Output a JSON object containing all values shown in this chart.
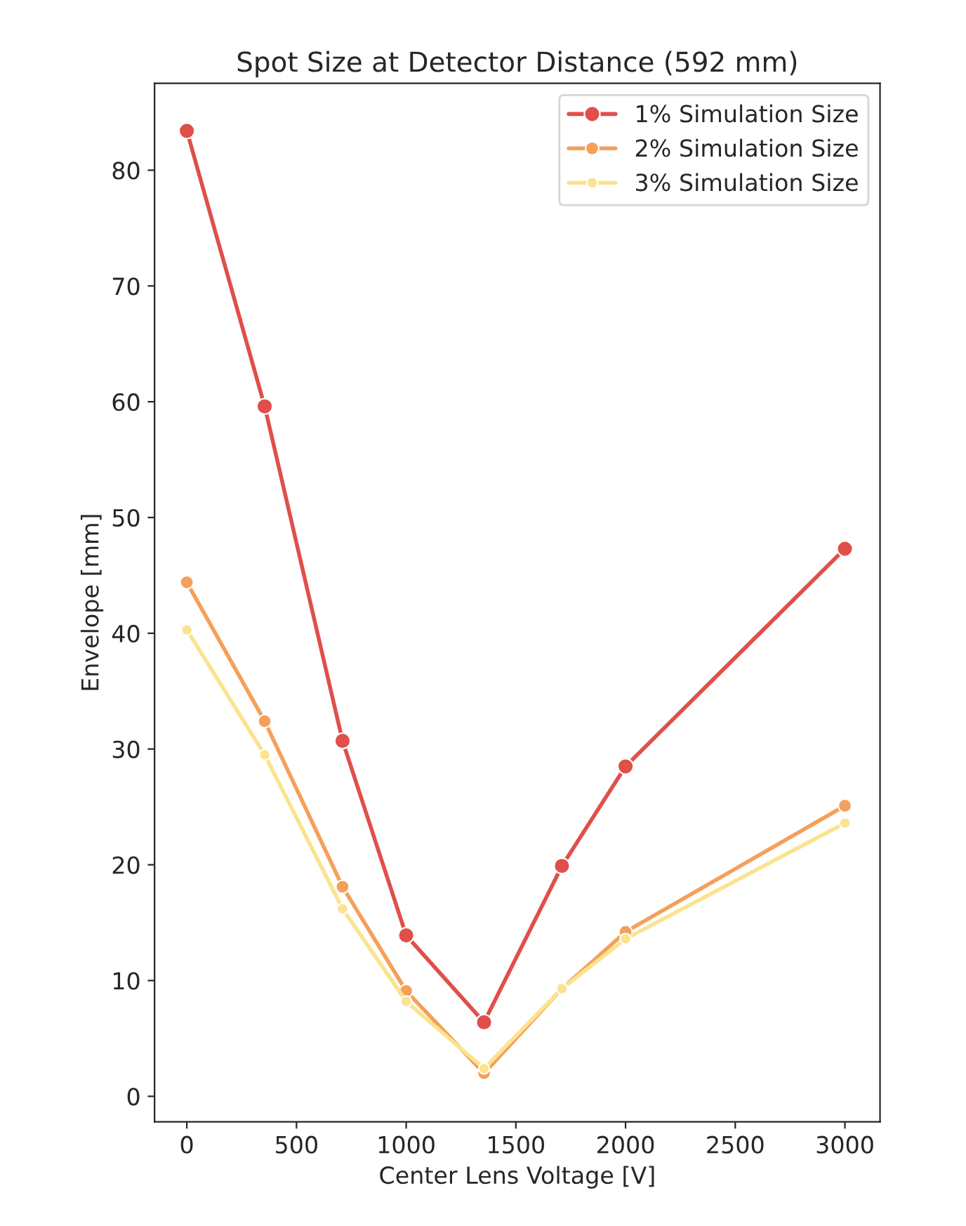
{
  "chart_data": {
    "type": "line",
    "title": "Spot Size at Detector Distance (592 mm)",
    "xlabel": "Center Lens Voltage [V]",
    "ylabel": "Envelope [mm]",
    "x": [
      0,
      355,
      710,
      1000,
      1355,
      1710,
      2000,
      3000
    ],
    "series": [
      {
        "name": "1% Simulation Size",
        "color": "#e04f4a",
        "values": [
          83.4,
          59.6,
          30.7,
          13.9,
          6.4,
          19.9,
          28.5,
          47.3
        ]
      },
      {
        "name": "2% Simulation Size",
        "color": "#f5a05a",
        "values": [
          44.4,
          32.4,
          18.1,
          9.1,
          2.0,
          9.3,
          14.2,
          25.1
        ]
      },
      {
        "name": "3% Simulation Size",
        "color": "#fbe38f",
        "values": [
          40.3,
          29.5,
          16.2,
          8.2,
          2.4,
          9.3,
          13.6,
          23.6
        ]
      }
    ],
    "xlim": [
      -147,
      3160
    ],
    "ylim": [
      -2.2,
      87.5
    ],
    "xticks": [
      0,
      500,
      1000,
      1500,
      2000,
      2500,
      3000
    ],
    "yticks": [
      0,
      10,
      20,
      30,
      40,
      50,
      60,
      70,
      80
    ],
    "marker": "circle",
    "line_style": "solid",
    "legend": "top right",
    "grid": false
  }
}
